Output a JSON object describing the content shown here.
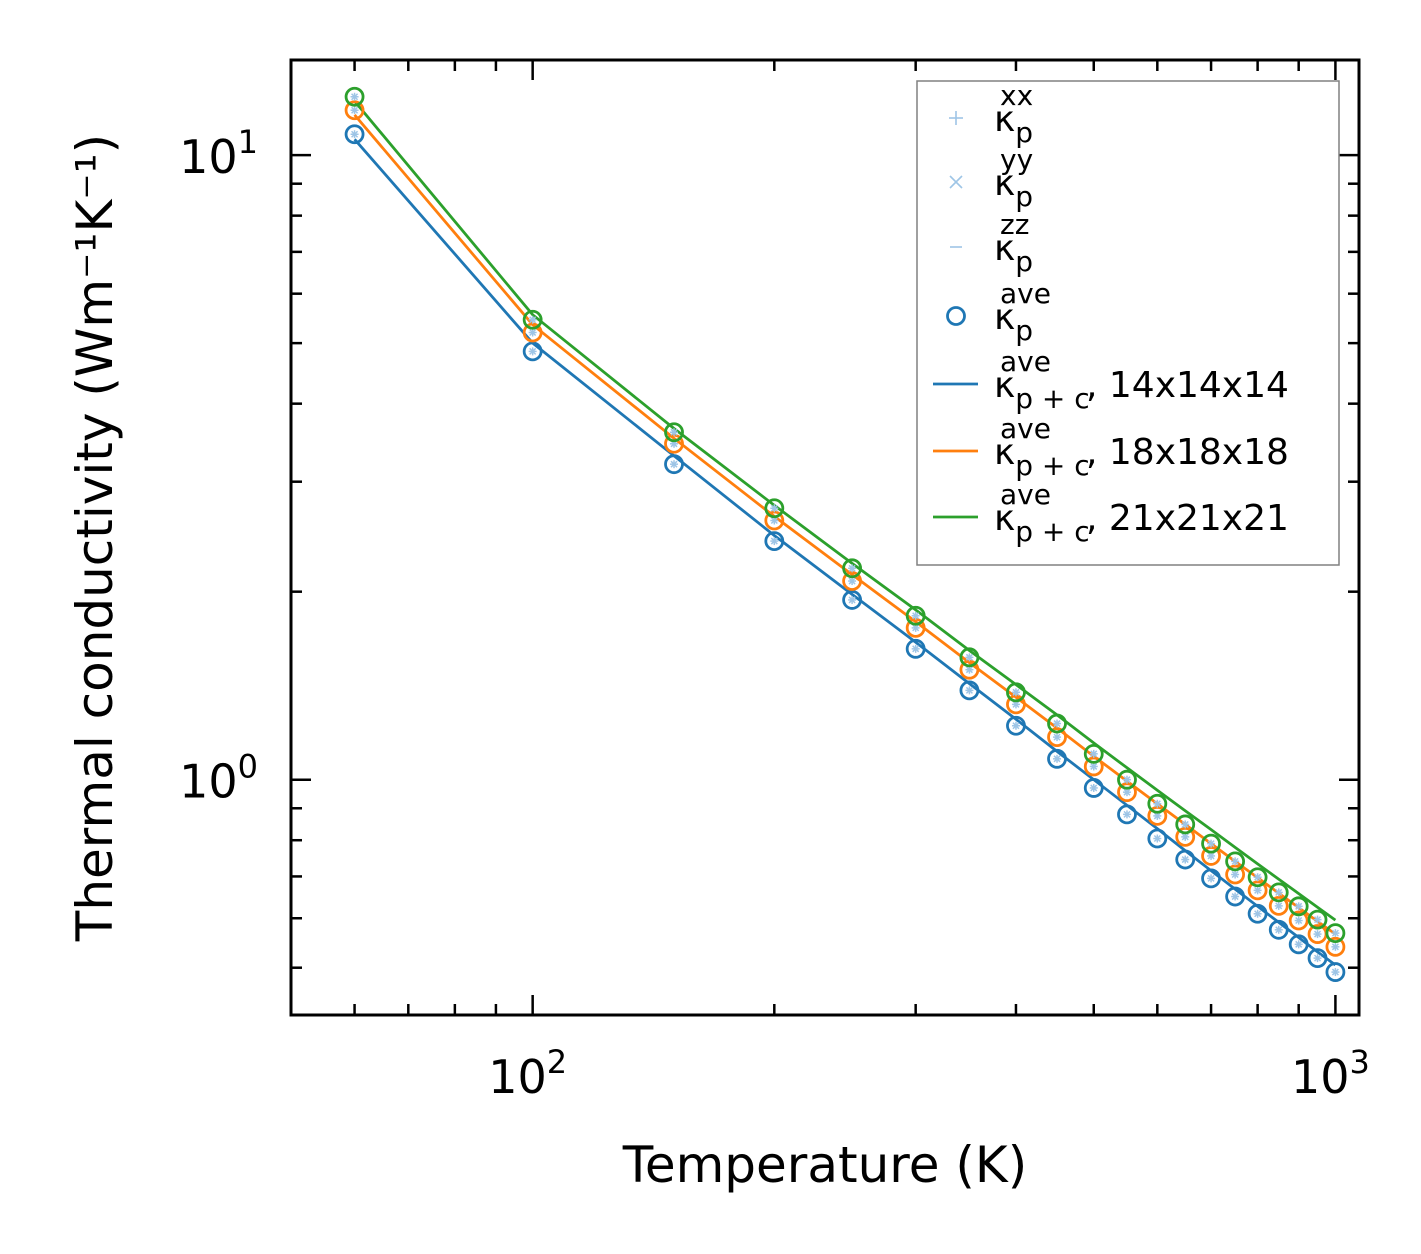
{
  "chart_data": {
    "type": "line",
    "title": "",
    "xlabel": "Temperature (K)",
    "ylabel": "Thermal conductivity (Wm⁻¹K⁻¹)",
    "xscale": "log",
    "yscale": "log",
    "xlim": [
      50,
      1070
    ],
    "ylim": [
      0.42,
      14.2
    ],
    "x_ticks": [
      {
        "value": 100,
        "base": "10",
        "exp": "2"
      },
      {
        "value": 1000,
        "base": "10",
        "exp": "3"
      }
    ],
    "y_ticks": [
      {
        "value": 1,
        "base": "10",
        "exp": "0"
      },
      {
        "value": 10,
        "base": "10",
        "exp": "1"
      }
    ],
    "ticks_direction": "in",
    "grid": false,
    "legend_position": "top-right",
    "x": [
      60,
      100,
      150,
      200,
      250,
      300,
      350,
      400,
      450,
      500,
      550,
      600,
      650,
      700,
      750,
      800,
      850,
      900,
      950,
      1000
    ],
    "scatter_series": [
      {
        "name": "14x14x14",
        "color": "#1f77b4",
        "values": [
          10.8,
          4.85,
          3.2,
          2.41,
          1.94,
          1.62,
          1.39,
          1.22,
          1.08,
          0.97,
          0.88,
          0.805,
          0.745,
          0.695,
          0.65,
          0.61,
          0.575,
          0.545,
          0.518,
          0.492
        ]
      },
      {
        "name": "18x18x18",
        "color": "#ff7f0e",
        "values": [
          11.8,
          5.2,
          3.45,
          2.6,
          2.08,
          1.75,
          1.5,
          1.32,
          1.17,
          1.05,
          0.955,
          0.875,
          0.81,
          0.755,
          0.705,
          0.665,
          0.628,
          0.595,
          0.566,
          0.54
        ]
      },
      {
        "name": "21x21x21",
        "color": "#2ca02c",
        "values": [
          12.4,
          5.45,
          3.6,
          2.72,
          2.18,
          1.83,
          1.57,
          1.38,
          1.23,
          1.1,
          1.0,
          0.915,
          0.848,
          0.79,
          0.74,
          0.698,
          0.66,
          0.627,
          0.597,
          0.568
        ]
      }
    ],
    "series": [
      {
        "name": "κ(p+c, ave), 14x14x14",
        "color": "#1f77b4",
        "x": [
          60,
          100,
          150,
          200,
          250,
          300,
          350,
          400,
          450,
          500,
          550,
          600,
          650,
          700,
          750,
          800,
          850,
          900,
          950,
          1000
        ],
        "values": [
          10.6,
          5.0,
          3.3,
          2.46,
          1.98,
          1.66,
          1.425,
          1.25,
          1.11,
          1.0,
          0.91,
          0.835,
          0.77,
          0.715,
          0.668,
          0.627,
          0.591,
          0.559,
          0.53,
          0.505
        ]
      },
      {
        "name": "κ(p+c, ave), 18x18x18",
        "color": "#ff7f0e",
        "x": [
          60,
          100,
          150,
          200,
          250,
          300,
          350,
          400,
          450,
          500,
          550,
          600,
          650,
          700,
          750,
          800,
          850,
          900,
          950,
          1000
        ],
        "values": [
          11.6,
          5.35,
          3.52,
          2.64,
          2.13,
          1.79,
          1.54,
          1.355,
          1.21,
          1.09,
          0.995,
          0.915,
          0.848,
          0.79,
          0.74,
          0.697,
          0.658,
          0.624,
          0.593,
          0.566
        ]
      },
      {
        "name": "κ(p+c, ave), 21x21x21",
        "color": "#2ca02c",
        "x": [
          60,
          100,
          150,
          200,
          250,
          300,
          350,
          400,
          450,
          500,
          550,
          600,
          650,
          700,
          750,
          800,
          850,
          900,
          950,
          1000
        ],
        "values": [
          12.2,
          5.55,
          3.65,
          2.75,
          2.22,
          1.87,
          1.61,
          1.42,
          1.27,
          1.145,
          1.045,
          0.962,
          0.892,
          0.832,
          0.779,
          0.733,
          0.693,
          0.657,
          0.625,
          0.596
        ]
      }
    ],
    "legend": {
      "entries": [
        {
          "symbol": "+",
          "marker": "plus",
          "color": "#9ec5e6",
          "base": "κ",
          "sub": "p",
          "sup": "xx",
          "suffix": ""
        },
        {
          "symbol": "×",
          "marker": "cross",
          "color": "#9ec5e6",
          "base": "κ",
          "sub": "p",
          "sup": "yy",
          "suffix": ""
        },
        {
          "symbol": "–",
          "marker": "dash",
          "color": "#9ec5e6",
          "base": "κ",
          "sub": "p",
          "sup": "zz",
          "suffix": ""
        },
        {
          "symbol": "o",
          "marker": "circle",
          "color": "#1f77b4",
          "base": "κ",
          "sub": "p",
          "sup": "ave",
          "suffix": ""
        },
        {
          "symbol": "line",
          "marker": "line",
          "color": "#1f77b4",
          "base": "κ",
          "sub": "p + c",
          "sup": "ave",
          "suffix": ", 14x14x14"
        },
        {
          "symbol": "line",
          "marker": "line",
          "color": "#ff7f0e",
          "base": "κ",
          "sub": "p + c",
          "sup": "ave",
          "suffix": ", 18x18x18"
        },
        {
          "symbol": "line",
          "marker": "line",
          "color": "#2ca02c",
          "base": "κ",
          "sub": "p + c",
          "sup": "ave",
          "suffix": ", 21x21x21"
        }
      ]
    },
    "component_marker_color": "#9ec5e6"
  }
}
